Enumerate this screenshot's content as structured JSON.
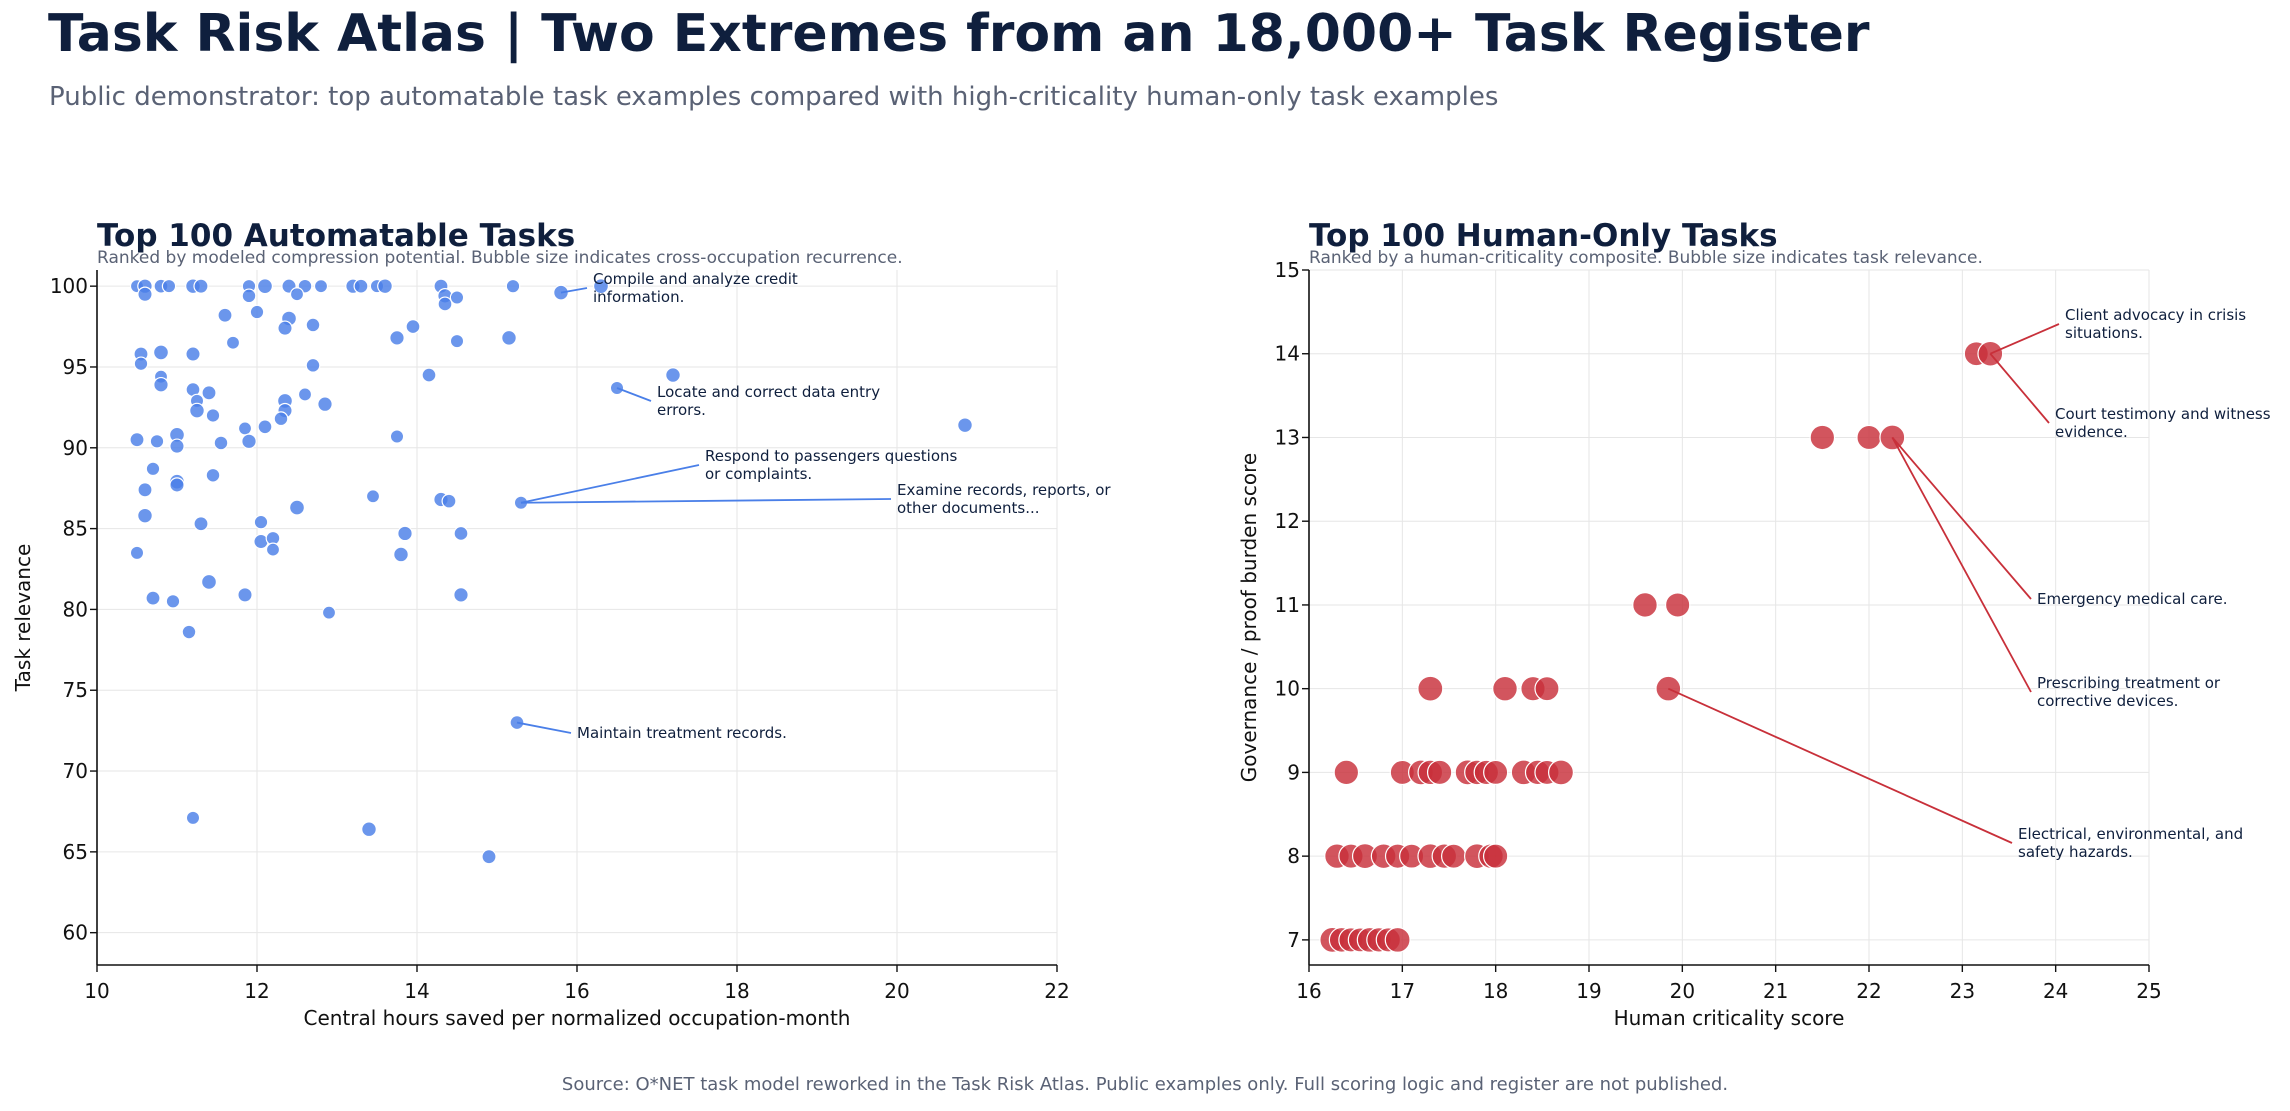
{
  "header": {
    "title": "Task Risk Atlas | Two Extremes from an 18,000+ Task Register",
    "subtitle": "Public demonstrator: top automatable task examples compared with high-criticality human-only task examples"
  },
  "footer": {
    "source": "Source: O*NET task model reworked in the Task Risk Atlas. Public examples only. Full scoring logic and register are not published."
  },
  "chart_data": [
    {
      "type": "scatter",
      "title": "Top 100 Automatable Tasks",
      "subtitle": "Ranked by modeled compression potential. Bubble size indicates cross-occupation recurrence.",
      "xlabel": "Central hours saved per normalized occupation-month",
      "ylabel": "Task relevance",
      "xlim": [
        10,
        22
      ],
      "ylim": [
        58,
        101
      ],
      "xticks": [
        10,
        12,
        14,
        16,
        18,
        20,
        22
      ],
      "yticks": [
        60,
        65,
        70,
        75,
        80,
        85,
        90,
        95,
        100
      ],
      "grid": true,
      "color": "#4a7fe8",
      "points": [
        [
          10.5,
          100
        ],
        [
          10.6,
          100
        ],
        [
          10.8,
          100
        ],
        [
          10.9,
          100
        ],
        [
          11.2,
          100
        ],
        [
          11.3,
          100
        ],
        [
          11.9,
          100
        ],
        [
          12.1,
          100
        ],
        [
          12.4,
          100
        ],
        [
          12.6,
          100
        ],
        [
          12.8,
          100
        ],
        [
          13.2,
          100
        ],
        [
          13.3,
          100
        ],
        [
          13.5,
          100
        ],
        [
          13.6,
          100
        ],
        [
          14.3,
          100
        ],
        [
          15.2,
          100
        ],
        [
          16.3,
          100
        ],
        [
          10.6,
          99.5
        ],
        [
          11.9,
          99.4
        ],
        [
          12.5,
          99.5
        ],
        [
          14.35,
          99.4
        ],
        [
          14.35,
          98.9
        ],
        [
          14.5,
          99.3
        ],
        [
          15.8,
          99.6
        ],
        [
          11.6,
          98.2
        ],
        [
          12.0,
          98.4
        ],
        [
          12.4,
          98.0
        ],
        [
          12.35,
          97.4
        ],
        [
          12.7,
          97.6
        ],
        [
          11.7,
          96.5
        ],
        [
          13.75,
          96.8
        ],
        [
          13.95,
          97.5
        ],
        [
          14.5,
          96.6
        ],
        [
          15.15,
          96.8
        ],
        [
          10.55,
          95.8
        ],
        [
          10.55,
          95.2
        ],
        [
          10.8,
          95.9
        ],
        [
          11.2,
          95.8
        ],
        [
          12.7,
          95.1
        ],
        [
          10.8,
          94.4
        ],
        [
          10.8,
          93.9
        ],
        [
          11.2,
          93.6
        ],
        [
          11.25,
          92.9
        ],
        [
          11.25,
          92.3
        ],
        [
          11.4,
          93.4
        ],
        [
          11.45,
          92.0
        ],
        [
          12.35,
          92.9
        ],
        [
          12.35,
          92.3
        ],
        [
          12.3,
          91.8
        ],
        [
          12.6,
          93.3
        ],
        [
          12.85,
          92.7
        ],
        [
          14.15,
          94.5
        ],
        [
          16.5,
          93.7
        ],
        [
          17.2,
          94.5
        ],
        [
          10.5,
          90.5
        ],
        [
          10.75,
          90.4
        ],
        [
          11.0,
          90.8
        ],
        [
          11.0,
          90.1
        ],
        [
          11.55,
          90.3
        ],
        [
          11.85,
          91.2
        ],
        [
          11.9,
          90.4
        ],
        [
          12.1,
          91.3
        ],
        [
          13.75,
          90.7
        ],
        [
          20.85,
          91.4
        ],
        [
          10.6,
          87.4
        ],
        [
          10.7,
          88.7
        ],
        [
          11.0,
          87.9
        ],
        [
          11.0,
          87.7
        ],
        [
          11.45,
          88.3
        ],
        [
          13.45,
          87.0
        ],
        [
          14.3,
          86.8
        ],
        [
          14.4,
          86.7
        ],
        [
          15.3,
          86.6
        ],
        [
          10.6,
          85.8
        ],
        [
          11.3,
          85.3
        ],
        [
          12.05,
          85.4
        ],
        [
          12.5,
          86.3
        ],
        [
          12.05,
          84.2
        ],
        [
          12.2,
          84.4
        ],
        [
          12.2,
          83.7
        ],
        [
          13.85,
          84.7
        ],
        [
          14.55,
          84.7
        ],
        [
          10.5,
          83.5
        ],
        [
          13.8,
          83.4
        ],
        [
          10.7,
          80.7
        ],
        [
          10.95,
          80.5
        ],
        [
          11.4,
          81.7
        ],
        [
          11.85,
          80.9
        ],
        [
          11.15,
          78.6
        ],
        [
          12.9,
          79.8
        ],
        [
          14.55,
          80.9
        ],
        [
          15.25,
          73.0
        ],
        [
          11.2,
          67.1
        ],
        [
          13.4,
          66.4
        ],
        [
          14.9,
          64.7
        ]
      ],
      "annotations": [
        {
          "text": [
            "Compile and analyze credit",
            "information."
          ],
          "point": [
            15.8,
            99.6
          ]
        },
        {
          "text": [
            "Locate and correct data entry",
            "errors."
          ],
          "point": [
            16.5,
            93.7
          ]
        },
        {
          "text": [
            "Respond to passengers questions",
            "or complaints."
          ],
          "point": [
            15.3,
            86.6
          ]
        },
        {
          "text": [
            "Examine records, reports, or",
            "other documents..."
          ],
          "point": [
            15.3,
            86.6
          ]
        },
        {
          "text": [
            "Maintain treatment records."
          ],
          "point": [
            15.25,
            73.0
          ]
        }
      ]
    },
    {
      "type": "scatter",
      "title": "Top 100 Human-Only Tasks",
      "subtitle": "Ranked by a human-criticality composite. Bubble size indicates task relevance.",
      "xlabel": "Human criticality score",
      "ylabel": "Governance / proof burden score",
      "xlim": [
        16,
        25
      ],
      "ylim": [
        6.7,
        15
      ],
      "xticks": [
        16,
        17,
        18,
        19,
        20,
        21,
        22,
        23,
        24,
        25
      ],
      "yticks": [
        7,
        8,
        9,
        10,
        11,
        12,
        13,
        14,
        15
      ],
      "grid": true,
      "color": "#c8303a",
      "points": [
        [
          23.15,
          14
        ],
        [
          23.3,
          14
        ],
        [
          21.5,
          13
        ],
        [
          22.0,
          13
        ],
        [
          22.25,
          13
        ],
        [
          19.6,
          11
        ],
        [
          19.95,
          11
        ],
        [
          17.3,
          10
        ],
        [
          18.1,
          10
        ],
        [
          18.4,
          10
        ],
        [
          18.55,
          10
        ],
        [
          19.85,
          10
        ],
        [
          16.4,
          9
        ],
        [
          17.0,
          9
        ],
        [
          17.2,
          9
        ],
        [
          17.3,
          9
        ],
        [
          17.4,
          9
        ],
        [
          17.7,
          9
        ],
        [
          17.8,
          9
        ],
        [
          17.9,
          9
        ],
        [
          18.0,
          9
        ],
        [
          18.3,
          9
        ],
        [
          18.45,
          9
        ],
        [
          18.55,
          9
        ],
        [
          18.7,
          9
        ],
        [
          16.3,
          8
        ],
        [
          16.45,
          8
        ],
        [
          16.6,
          8
        ],
        [
          16.8,
          8
        ],
        [
          16.95,
          8
        ],
        [
          17.1,
          8
        ],
        [
          17.3,
          8
        ],
        [
          17.45,
          8
        ],
        [
          17.55,
          8
        ],
        [
          17.8,
          8
        ],
        [
          17.95,
          8
        ],
        [
          18.0,
          8
        ],
        [
          16.25,
          7
        ],
        [
          16.35,
          7
        ],
        [
          16.45,
          7
        ],
        [
          16.55,
          7
        ],
        [
          16.65,
          7
        ],
        [
          16.75,
          7
        ],
        [
          16.85,
          7
        ],
        [
          16.95,
          7
        ]
      ],
      "annotations": [
        {
          "text": [
            "Client advocacy in crisis",
            "situations."
          ],
          "point": [
            23.3,
            14
          ]
        },
        {
          "text": [
            "Court testimony and witness",
            "evidence."
          ],
          "point": [
            23.3,
            14
          ]
        },
        {
          "text": [
            "Emergency medical care."
          ],
          "point": [
            22.25,
            13
          ]
        },
        {
          "text": [
            "Prescribing treatment or",
            "corrective devices."
          ],
          "point": [
            22.25,
            13
          ]
        },
        {
          "text": [
            "Electrical, environmental, and",
            "safety hazards."
          ],
          "point": [
            19.85,
            10
          ]
        }
      ]
    }
  ]
}
